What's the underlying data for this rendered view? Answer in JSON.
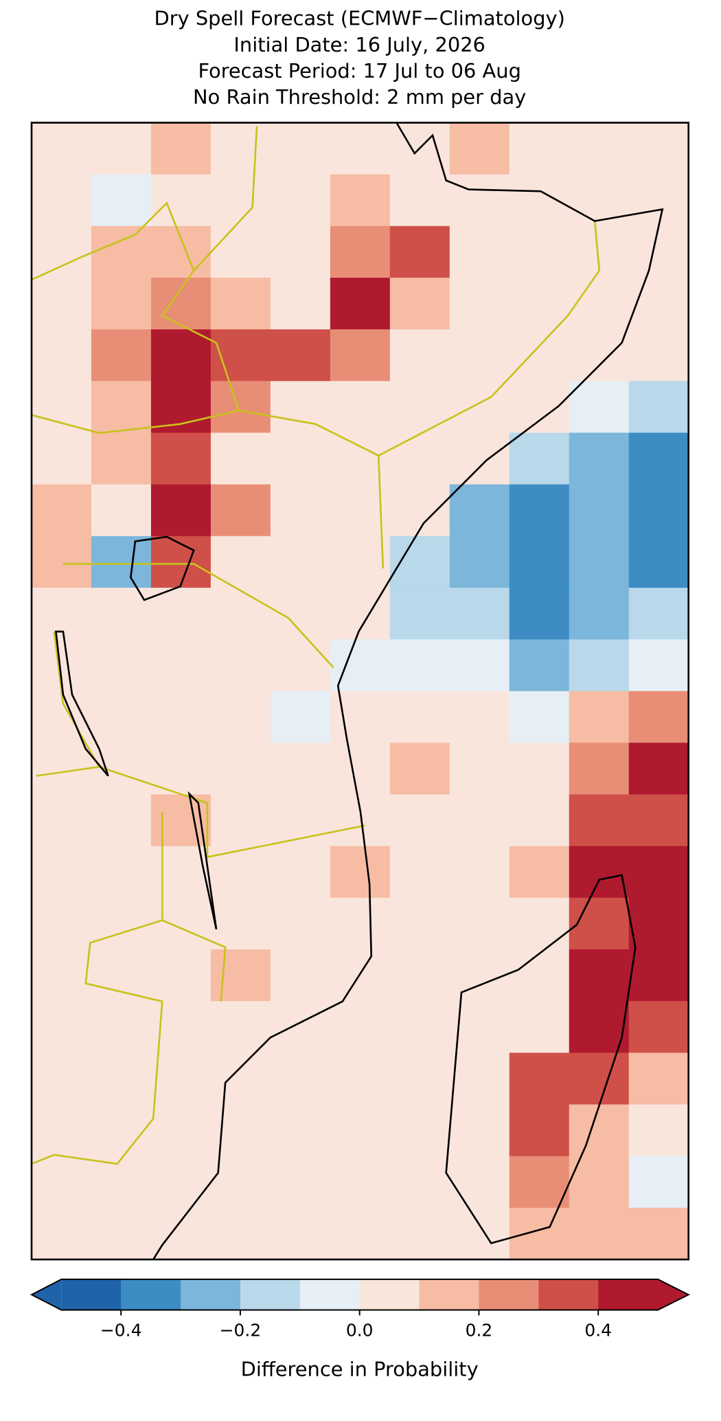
{
  "chart_data": {
    "type": "heatmap",
    "title": [
      "Dry Spell Forecast (ECMWF−Climatology)",
      "Initial Date: 16 July, 2026",
      "Forecast Period: 17 Jul to 06 Aug",
      "No Rain Threshold: 2 mm per day"
    ],
    "values": [
      [
        0.05,
        0.05,
        0.15,
        0.05,
        0.05,
        0.05,
        0.05,
        0.15,
        0.05,
        0.05,
        0.05
      ],
      [
        0.05,
        -0.05,
        0.05,
        0.05,
        0.05,
        0.15,
        0.05,
        0.05,
        0.05,
        0.05,
        0.05
      ],
      [
        0.05,
        0.15,
        0.15,
        0.05,
        0.05,
        0.25,
        0.35,
        0.05,
        0.05,
        0.05,
        0.05
      ],
      [
        0.05,
        0.15,
        0.25,
        0.15,
        0.05,
        0.45,
        0.15,
        0.05,
        0.05,
        0.05,
        0.05
      ],
      [
        0.05,
        0.25,
        0.45,
        0.35,
        0.35,
        0.25,
        0.05,
        0.05,
        0.05,
        0.05,
        0.05
      ],
      [
        0.05,
        0.15,
        0.45,
        0.25,
        0.05,
        0.05,
        0.05,
        0.05,
        0.05,
        -0.05,
        -0.15
      ],
      [
        0.05,
        0.15,
        0.35,
        0.05,
        0.05,
        0.05,
        0.05,
        0.05,
        -0.15,
        -0.25,
        -0.35
      ],
      [
        0.15,
        0.05,
        0.45,
        0.25,
        0.05,
        0.05,
        0.05,
        -0.25,
        -0.35,
        -0.25,
        -0.35
      ],
      [
        0.15,
        -0.25,
        0.35,
        0.05,
        0.05,
        0.05,
        -0.15,
        -0.25,
        -0.35,
        -0.25,
        -0.35
      ],
      [
        0.05,
        0.05,
        0.05,
        0.05,
        0.05,
        0.05,
        -0.15,
        -0.15,
        -0.35,
        -0.25,
        -0.15
      ],
      [
        0.05,
        0.05,
        0.05,
        0.05,
        0.05,
        -0.05,
        -0.05,
        -0.05,
        -0.25,
        -0.15,
        -0.05
      ],
      [
        0.05,
        0.05,
        0.05,
        0.05,
        -0.05,
        0.05,
        0.05,
        0.05,
        -0.05,
        0.15,
        0.25
      ],
      [
        0.05,
        0.05,
        0.05,
        0.05,
        0.05,
        0.05,
        0.15,
        0.05,
        0.05,
        0.25,
        0.45
      ],
      [
        0.05,
        0.05,
        0.15,
        0.05,
        0.05,
        0.05,
        0.05,
        0.05,
        0.05,
        0.35,
        0.35
      ],
      [
        0.05,
        0.05,
        0.05,
        0.05,
        0.05,
        0.15,
        0.05,
        0.05,
        0.15,
        0.45,
        0.45
      ],
      [
        0.05,
        0.05,
        0.05,
        0.05,
        0.05,
        0.05,
        0.05,
        0.05,
        0.05,
        0.35,
        0.45
      ],
      [
        0.05,
        0.05,
        0.05,
        0.15,
        0.05,
        0.05,
        0.05,
        0.05,
        0.05,
        0.45,
        0.45
      ],
      [
        0.05,
        0.05,
        0.05,
        0.05,
        0.05,
        0.05,
        0.05,
        0.05,
        0.05,
        0.45,
        0.35
      ],
      [
        0.05,
        0.05,
        0.05,
        0.05,
        0.05,
        0.05,
        0.05,
        0.05,
        0.35,
        0.35,
        0.15
      ],
      [
        0.05,
        0.05,
        0.05,
        0.05,
        0.05,
        0.05,
        0.05,
        0.05,
        0.35,
        0.15,
        0.05
      ],
      [
        0.05,
        0.05,
        0.05,
        0.05,
        0.05,
        0.05,
        0.05,
        0.05,
        0.25,
        0.15,
        -0.05
      ],
      [
        0.05,
        0.05,
        0.05,
        0.05,
        0.05,
        0.05,
        0.05,
        0.05,
        0.15,
        0.15,
        0.15
      ]
    ],
    "levels": [
      -0.5,
      -0.4,
      -0.3,
      -0.2,
      -0.1,
      0,
      0.1,
      0.2,
      0.3,
      0.4,
      0.5
    ],
    "colors": [
      "#1f63a8",
      "#3d8dc4",
      "#7cb6da",
      "#b9d8ea",
      "#e5eff5",
      "#f9e5dc",
      "#f7bca4",
      "#e98e76",
      "#cf5048",
      "#b01a2e"
    ],
    "extend": "both",
    "cticks": [
      {
        "value": -0.4,
        "label": "−0.4"
      },
      {
        "value": -0.2,
        "label": "−0.2"
      },
      {
        "value": 0,
        "label": "0.0"
      },
      {
        "value": 0.2,
        "label": "0.2"
      },
      {
        "value": 0.4,
        "label": "0.4"
      }
    ],
    "colorbar_label": "Difference in Probability"
  }
}
